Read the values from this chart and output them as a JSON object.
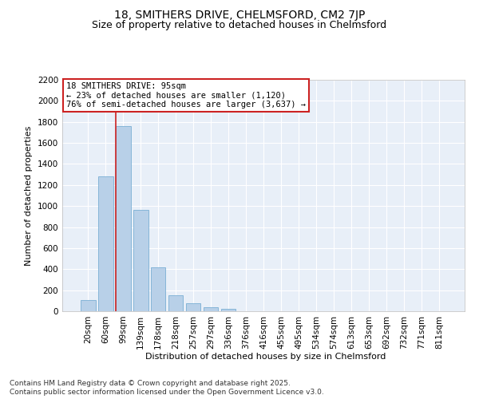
{
  "title_line1": "18, SMITHERS DRIVE, CHELMSFORD, CM2 7JP",
  "title_line2": "Size of property relative to detached houses in Chelmsford",
  "xlabel": "Distribution of detached houses by size in Chelmsford",
  "ylabel": "Number of detached properties",
  "categories": [
    "20sqm",
    "60sqm",
    "99sqm",
    "139sqm",
    "178sqm",
    "218sqm",
    "257sqm",
    "297sqm",
    "336sqm",
    "376sqm",
    "416sqm",
    "455sqm",
    "495sqm",
    "534sqm",
    "574sqm",
    "613sqm",
    "653sqm",
    "692sqm",
    "732sqm",
    "771sqm",
    "811sqm"
  ],
  "values": [
    110,
    1280,
    1760,
    960,
    420,
    155,
    75,
    40,
    20,
    0,
    0,
    0,
    0,
    0,
    0,
    0,
    0,
    0,
    0,
    0,
    0
  ],
  "bar_color": "#b8d0e8",
  "bar_edge_color": "#7aafd4",
  "vline_color": "#cc2222",
  "vline_x_index": 2,
  "annotation_line1": "18 SMITHERS DRIVE: 95sqm",
  "annotation_line2": "← 23% of detached houses are smaller (1,120)",
  "annotation_line3": "76% of semi-detached houses are larger (3,637) →",
  "annotation_box_edgecolor": "#cc2222",
  "annotation_box_facecolor": "white",
  "ylim_max": 2200,
  "yticks": [
    0,
    200,
    400,
    600,
    800,
    1000,
    1200,
    1400,
    1600,
    1800,
    2000,
    2200
  ],
  "bg_color": "#e8eff8",
  "grid_color": "white",
  "footer_line1": "Contains HM Land Registry data © Crown copyright and database right 2025.",
  "footer_line2": "Contains public sector information licensed under the Open Government Licence v3.0.",
  "title_fontsize": 10,
  "subtitle_fontsize": 9,
  "axis_label_fontsize": 8,
  "tick_fontsize": 7.5,
  "annotation_fontsize": 7.5,
  "footer_fontsize": 6.5
}
